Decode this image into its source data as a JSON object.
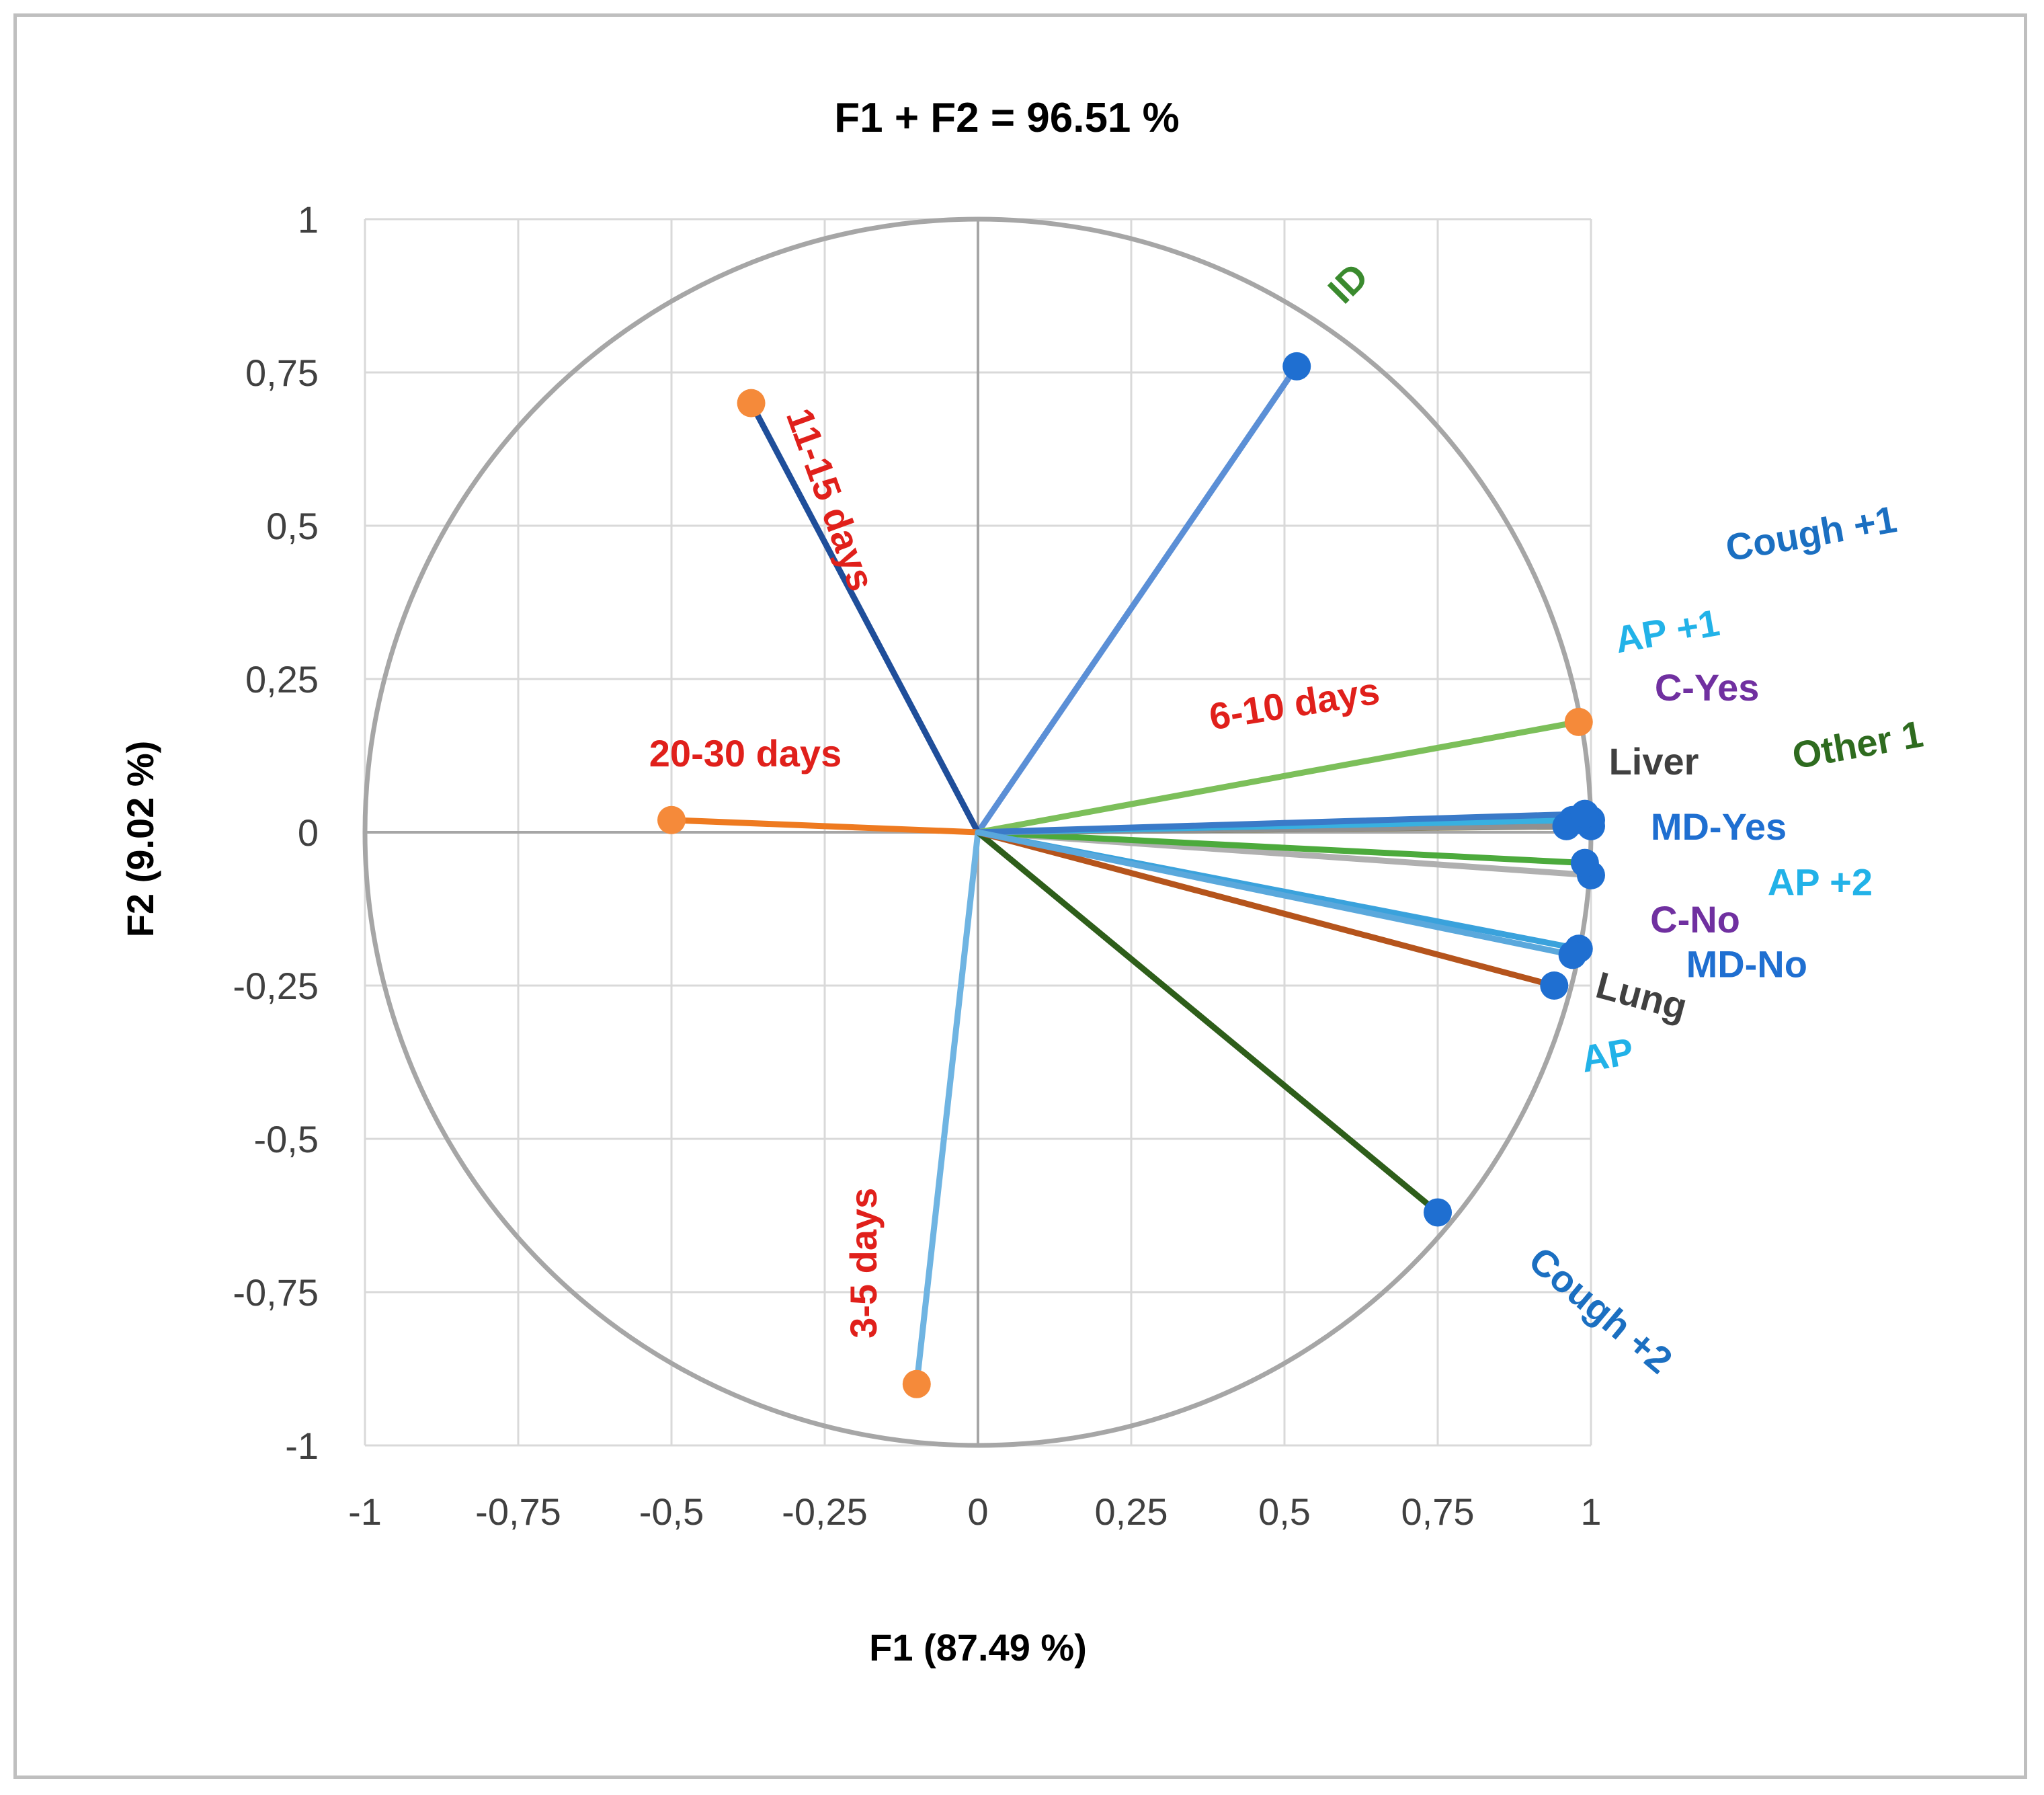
{
  "chart_data": {
    "type": "scatter",
    "subtype": "pca-correlation-circle",
    "title": "F1 + F2 = 96.51 %",
    "xlabel": "F1 (87.49 %)",
    "ylabel": "F2 (9.02 %)",
    "xlim": [
      -1,
      1
    ],
    "ylim": [
      -1,
      1
    ],
    "xticks": [
      "-1",
      "-0,75",
      "-0,5",
      "-0,25",
      "0",
      "0,25",
      "0,5",
      "0,75",
      "1"
    ],
    "yticks": [
      "1",
      "0,75",
      "0,5",
      "0,25",
      "0",
      "-0,25",
      "-0,5",
      "-0,75",
      "-1"
    ],
    "grid": true,
    "unit_circle": true,
    "vectors": [
      {
        "label": "ID",
        "x": 0.52,
        "y": 0.76,
        "line_color": "#5b8fd6",
        "point_color": "#1f6fd1",
        "label_color": "#3a8a2e"
      },
      {
        "label": "11-15 days",
        "x": -0.37,
        "y": 0.7,
        "line_color": "#1f4e9a",
        "point_color": "#f58a3a",
        "label_color": "#e0201b"
      },
      {
        "label": "20-30 days",
        "x": -0.5,
        "y": 0.02,
        "line_color": "#ee7a20",
        "point_color": "#f58a3a",
        "label_color": "#e0201b"
      },
      {
        "label": "6-10 days",
        "x": 0.98,
        "y": 0.18,
        "line_color": "#7cbf5a",
        "point_color": "#f58a3a",
        "label_color": "#e0201b"
      },
      {
        "label": "3-5 days",
        "x": -0.1,
        "y": -0.9,
        "line_color": "#6fb4e2",
        "point_color": "#f58a3a",
        "label_color": "#e0201b"
      },
      {
        "label": "Cough +2",
        "x": 0.75,
        "y": -0.62,
        "line_color": "#2e5e1a",
        "point_color": "#1f6fd1",
        "label_color": "#1b6fc1"
      },
      {
        "label": "Lung",
        "x": 0.94,
        "y": -0.25,
        "line_color": "#b5541c",
        "point_color": "#1f6fd1",
        "label_color": "#404040"
      },
      {
        "label": "MD-No",
        "x": 0.98,
        "y": -0.19,
        "line_color": "#3aa2dc",
        "point_color": "#1f6fd1",
        "label_color": "#1f6fd1"
      },
      {
        "label": "C-No",
        "x": 1.0,
        "y": -0.07,
        "line_color": "#b0b0b0",
        "point_color": "#1f6fd1",
        "label_color": "#7030a0"
      },
      {
        "label": "AP +2",
        "x": 0.99,
        "y": -0.05,
        "line_color": "#4caa3c",
        "point_color": "#1f6fd1",
        "label_color": "#22b2e8"
      },
      {
        "label": "MD-Yes",
        "x": 1.0,
        "y": 0.01,
        "line_color": "#7a6a1a",
        "point_color": "#1f6fd1",
        "label_color": "#1f6fd1"
      },
      {
        "label": "Other 1",
        "x": 1.0,
        "y": 0.02,
        "line_color": "#f2c31c",
        "point_color": "#1f6fd1",
        "label_color": "#2e6b1f"
      },
      {
        "label": "Liver",
        "x": 0.96,
        "y": 0.01,
        "line_color": "#909090",
        "point_color": "#1f6fd1",
        "label_color": "#404040"
      },
      {
        "label": "C-Yes",
        "x": 0.97,
        "y": 0.02,
        "line_color": "#8060b0",
        "point_color": "#1f6fd1",
        "label_color": "#7030a0"
      },
      {
        "label": "AP +1",
        "x": 0.98,
        "y": 0.02,
        "line_color": "#38b0e0",
        "point_color": "#1f6fd1",
        "label_color": "#22b2e8"
      },
      {
        "label": "Cough +1",
        "x": 0.99,
        "y": 0.03,
        "line_color": "#3a7ac8",
        "point_color": "#1f6fd1",
        "label_color": "#1b6fc1"
      },
      {
        "label": "AP",
        "x": 0.97,
        "y": -0.2,
        "line_color": "#5aa8dc",
        "point_color": "#1f6fd1",
        "label_color": "#22b2e8"
      }
    ]
  }
}
